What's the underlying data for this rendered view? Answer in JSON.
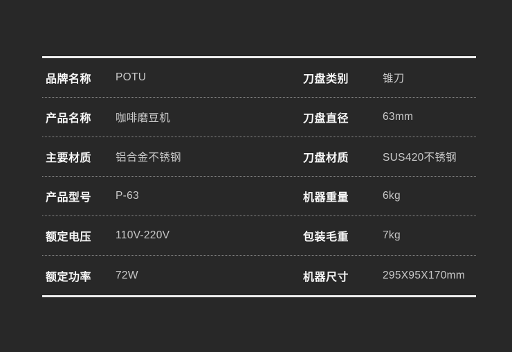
{
  "colors": {
    "background": "#282828",
    "label_text": "#f7f7f7",
    "value_text": "#c9c9c9",
    "rule_strong": "#ededed",
    "separator_dotted": "#8a8a8a"
  },
  "spec_table": {
    "rows": [
      {
        "left_label": "品牌名称",
        "left_value": "POTU",
        "right_label": "刀盘类别",
        "right_value": "锥刀"
      },
      {
        "left_label": "产品名称",
        "left_value": "咖啡磨豆机",
        "right_label": "刀盘直径",
        "right_value": "63mm"
      },
      {
        "left_label": "主要材质",
        "left_value": "铝合金不锈钢",
        "right_label": "刀盘材质",
        "right_value": "SUS420不锈钢"
      },
      {
        "left_label": "产品型号",
        "left_value": "P-63",
        "right_label": "机器重量",
        "right_value": "6kg"
      },
      {
        "left_label": "额定电压",
        "left_value": "110V-220V",
        "right_label": "包装毛重",
        "right_value": "7kg"
      },
      {
        "left_label": "额定功率",
        "left_value": "72W",
        "right_label": "机器尺寸",
        "right_value": "295X95X170mm"
      }
    ]
  }
}
